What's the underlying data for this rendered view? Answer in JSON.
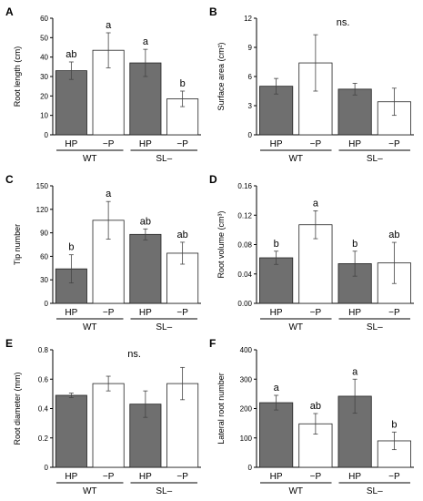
{
  "colors": {
    "dark_bar": "#6f6f6f",
    "light_bar": "#ffffff",
    "axis": "#000000",
    "text": "#000000"
  },
  "chart_data": [
    {
      "panel": "A",
      "type": "bar",
      "ylabel": "Root length (cm)",
      "ylim": [
        0,
        60
      ],
      "yticks": [
        "0",
        "10",
        "20",
        "30",
        "40",
        "50",
        "60"
      ],
      "categories": [
        "HP",
        "−P",
        "HP",
        "−P"
      ],
      "groups": [
        "WT",
        "SL–"
      ],
      "values": [
        33,
        43.5,
        37,
        18.5
      ],
      "errors": [
        4.5,
        9,
        7,
        4
      ],
      "bar_fill": [
        "dark",
        "light",
        "dark",
        "light"
      ],
      "letters": [
        "ab",
        "a",
        "a",
        "b"
      ],
      "annotation": ""
    },
    {
      "panel": "B",
      "type": "bar",
      "ylabel": "Surface area (cm²)",
      "ylim": [
        0,
        12
      ],
      "yticks": [
        "0",
        "3",
        "6",
        "9",
        "12"
      ],
      "categories": [
        "HP",
        "−P",
        "HP",
        "−P"
      ],
      "groups": [
        "WT",
        "SL–"
      ],
      "values": [
        5.0,
        7.4,
        4.7,
        3.4
      ],
      "errors": [
        0.8,
        2.9,
        0.6,
        1.4
      ],
      "bar_fill": [
        "dark",
        "light",
        "dark",
        "light"
      ],
      "letters": [
        "",
        "",
        "",
        ""
      ],
      "annotation": "ns."
    },
    {
      "panel": "C",
      "type": "bar",
      "ylabel": "Tip number",
      "ylim": [
        0,
        150
      ],
      "yticks": [
        "0",
        "30",
        "60",
        "90",
        "120",
        "150"
      ],
      "categories": [
        "HP",
        "−P",
        "HP",
        "−P"
      ],
      "groups": [
        "WT",
        "SL–"
      ],
      "values": [
        44,
        106,
        88,
        64
      ],
      "errors": [
        18,
        24,
        7,
        14
      ],
      "bar_fill": [
        "dark",
        "light",
        "dark",
        "light"
      ],
      "letters": [
        "b",
        "a",
        "ab",
        "ab"
      ],
      "annotation": ""
    },
    {
      "panel": "D",
      "type": "bar",
      "ylabel": "Root volume (cm³)",
      "ylim": [
        0,
        0.16
      ],
      "yticks": [
        "0.00",
        "0.04",
        "0.08",
        "0.12",
        "0.16"
      ],
      "categories": [
        "HP",
        "−P",
        "HP",
        "−P"
      ],
      "groups": [
        "WT",
        "SL–"
      ],
      "values": [
        0.062,
        0.107,
        0.054,
        0.055
      ],
      "errors": [
        0.009,
        0.019,
        0.017,
        0.028
      ],
      "bar_fill": [
        "dark",
        "light",
        "dark",
        "light"
      ],
      "letters": [
        "b",
        "a",
        "b",
        "ab"
      ],
      "annotation": ""
    },
    {
      "panel": "E",
      "type": "bar",
      "ylabel": "Root diameter (mm)",
      "ylim": [
        0,
        0.8
      ],
      "yticks": [
        "0",
        "0.2",
        "0.4",
        "0.6",
        "0.8"
      ],
      "categories": [
        "HP",
        "−P",
        "HP",
        "−P"
      ],
      "groups": [
        "WT",
        "SL–"
      ],
      "values": [
        0.49,
        0.57,
        0.43,
        0.57
      ],
      "errors": [
        0.015,
        0.05,
        0.09,
        0.11
      ],
      "bar_fill": [
        "dark",
        "light",
        "dark",
        "light"
      ],
      "letters": [
        "",
        "",
        "",
        ""
      ],
      "annotation": "ns."
    },
    {
      "panel": "F",
      "type": "bar",
      "ylabel": "Lateral root number",
      "ylim": [
        0,
        400
      ],
      "yticks": [
        "0",
        "100",
        "200",
        "300",
        "400"
      ],
      "categories": [
        "HP",
        "−P",
        "HP",
        "−P"
      ],
      "groups": [
        "WT",
        "SL–"
      ],
      "values": [
        220,
        148,
        242,
        90
      ],
      "errors": [
        25,
        35,
        58,
        30
      ],
      "bar_fill": [
        "dark",
        "light",
        "dark",
        "light"
      ],
      "letters": [
        "a",
        "ab",
        "a",
        "b"
      ],
      "annotation": ""
    }
  ]
}
